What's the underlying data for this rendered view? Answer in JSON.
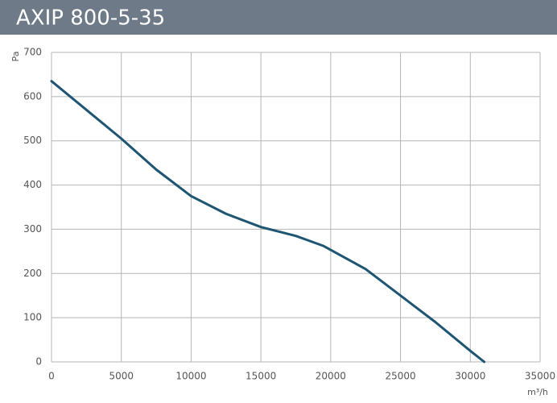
{
  "chart_data": {
    "type": "line",
    "title": "AXIP 800-5-35",
    "y_label": "Pa",
    "x_label": "m³/h",
    "series": [
      {
        "color": "#1d5572",
        "x": [
          0,
          2500,
          5000,
          7500,
          10000,
          12500,
          15000,
          17500,
          19500,
          22500,
          25000,
          27500,
          30000,
          31000
        ],
        "values": [
          635,
          570,
          505,
          435,
          375,
          335,
          305,
          285,
          262,
          210,
          150,
          90,
          25,
          0
        ]
      }
    ],
    "xlim": [
      0,
      35000
    ],
    "xticks": [
      0,
      5000,
      10000,
      15000,
      20000,
      25000,
      30000,
      35000
    ],
    "ylim": [
      0,
      700
    ],
    "yticks": [
      0,
      100,
      200,
      300,
      400,
      500,
      600,
      700
    ],
    "grid": true
  }
}
